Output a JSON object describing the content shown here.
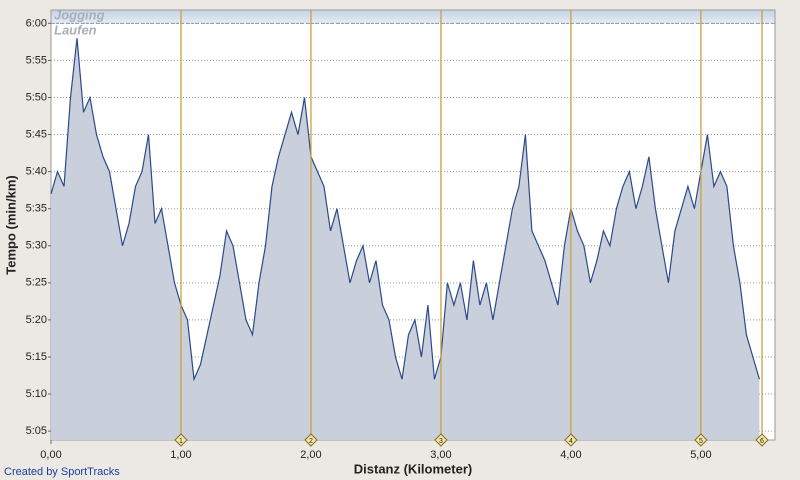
{
  "chart_data": {
    "type": "area",
    "x_label": "Distanz (Kilometer)",
    "y_label": "Tempo (min/km)",
    "credit": "Created by SportTracks",
    "zone_labels": [
      "Jogging",
      "Laufen"
    ],
    "zone_start": 360,
    "color": "#2b4a8a",
    "fill": "#c9cfdb",
    "grid": true,
    "xlim": [
      0,
      5.57
    ],
    "ylim": [
      303.8,
      361.8
    ],
    "xticks": [
      {
        "value": 0,
        "label": "0,00"
      },
      {
        "value": 1,
        "label": "1,00"
      },
      {
        "value": 2,
        "label": "2,00"
      },
      {
        "value": 3,
        "label": "3,00"
      },
      {
        "value": 4,
        "label": "4,00"
      },
      {
        "value": 5,
        "label": "5,00"
      }
    ],
    "yticks": [
      {
        "value": 305,
        "label": "5:05"
      },
      {
        "value": 310,
        "label": "5:10"
      },
      {
        "value": 315,
        "label": "5:15"
      },
      {
        "value": 320,
        "label": "5:20"
      },
      {
        "value": 325,
        "label": "5:25"
      },
      {
        "value": 330,
        "label": "5:30"
      },
      {
        "value": 335,
        "label": "5:35"
      },
      {
        "value": 340,
        "label": "5:40"
      },
      {
        "value": 345,
        "label": "5:45"
      },
      {
        "value": 350,
        "label": "5:50"
      },
      {
        "value": 355,
        "label": "5:55"
      },
      {
        "value": 360,
        "label": "6:00"
      }
    ],
    "markers": [
      {
        "value": 1,
        "label": "1"
      },
      {
        "value": 2,
        "label": "2"
      },
      {
        "value": 3,
        "label": "3"
      },
      {
        "value": 4,
        "label": "4"
      },
      {
        "value": 5,
        "label": "5"
      },
      {
        "value": 5.47,
        "label": "6"
      }
    ],
    "marker_color": "#c9a13e",
    "x": [
      0,
      0.05,
      0.1,
      0.15,
      0.2,
      0.25,
      0.3,
      0.35,
      0.4,
      0.45,
      0.5,
      0.55,
      0.6,
      0.65,
      0.7,
      0.75,
      0.8,
      0.85,
      0.9,
      0.95,
      1,
      1.05,
      1.1,
      1.15,
      1.2,
      1.25,
      1.3,
      1.35,
      1.4,
      1.45,
      1.5,
      1.55,
      1.6,
      1.65,
      1.7,
      1.75,
      1.8,
      1.85,
      1.9,
      1.95,
      2,
      2.05,
      2.1,
      2.15,
      2.2,
      2.25,
      2.3,
      2.35,
      2.4,
      2.45,
      2.5,
      2.55,
      2.6,
      2.65,
      2.7,
      2.75,
      2.8,
      2.85,
      2.9,
      2.95,
      3,
      3.05,
      3.1,
      3.15,
      3.2,
      3.25,
      3.3,
      3.35,
      3.4,
      3.45,
      3.5,
      3.55,
      3.6,
      3.65,
      3.7,
      3.75,
      3.8,
      3.85,
      3.9,
      3.95,
      4,
      4.05,
      4.1,
      4.15,
      4.2,
      4.25,
      4.3,
      4.35,
      4.4,
      4.45,
      4.5,
      4.55,
      4.6,
      4.65,
      4.7,
      4.75,
      4.8,
      4.85,
      4.9,
      4.95,
      5,
      5.05,
      5.1,
      5.15,
      5.2,
      5.25,
      5.3,
      5.35,
      5.4,
      5.45
    ],
    "values": [
      337,
      340,
      338,
      350,
      358,
      348,
      350,
      345,
      342,
      340,
      335,
      330,
      333,
      338,
      340,
      345,
      333,
      335,
      330,
      325,
      322,
      320,
      312,
      314,
      318,
      322,
      326,
      332,
      330,
      325,
      320,
      318,
      325,
      330,
      338,
      342,
      345,
      348,
      345,
      350,
      342,
      340,
      338,
      332,
      335,
      330,
      325,
      328,
      330,
      325,
      328,
      322,
      320,
      315,
      312,
      318,
      320,
      315,
      322,
      312,
      315,
      325,
      322,
      325,
      320,
      328,
      322,
      325,
      320,
      325,
      330,
      335,
      338,
      345,
      332,
      330,
      328,
      325,
      322,
      330,
      335,
      332,
      330,
      325,
      328,
      332,
      330,
      335,
      338,
      340,
      335,
      338,
      342,
      335,
      330,
      325,
      332,
      335,
      338,
      335,
      340,
      345,
      338,
      340,
      338,
      330,
      325,
      318,
      315,
      312
    ]
  }
}
